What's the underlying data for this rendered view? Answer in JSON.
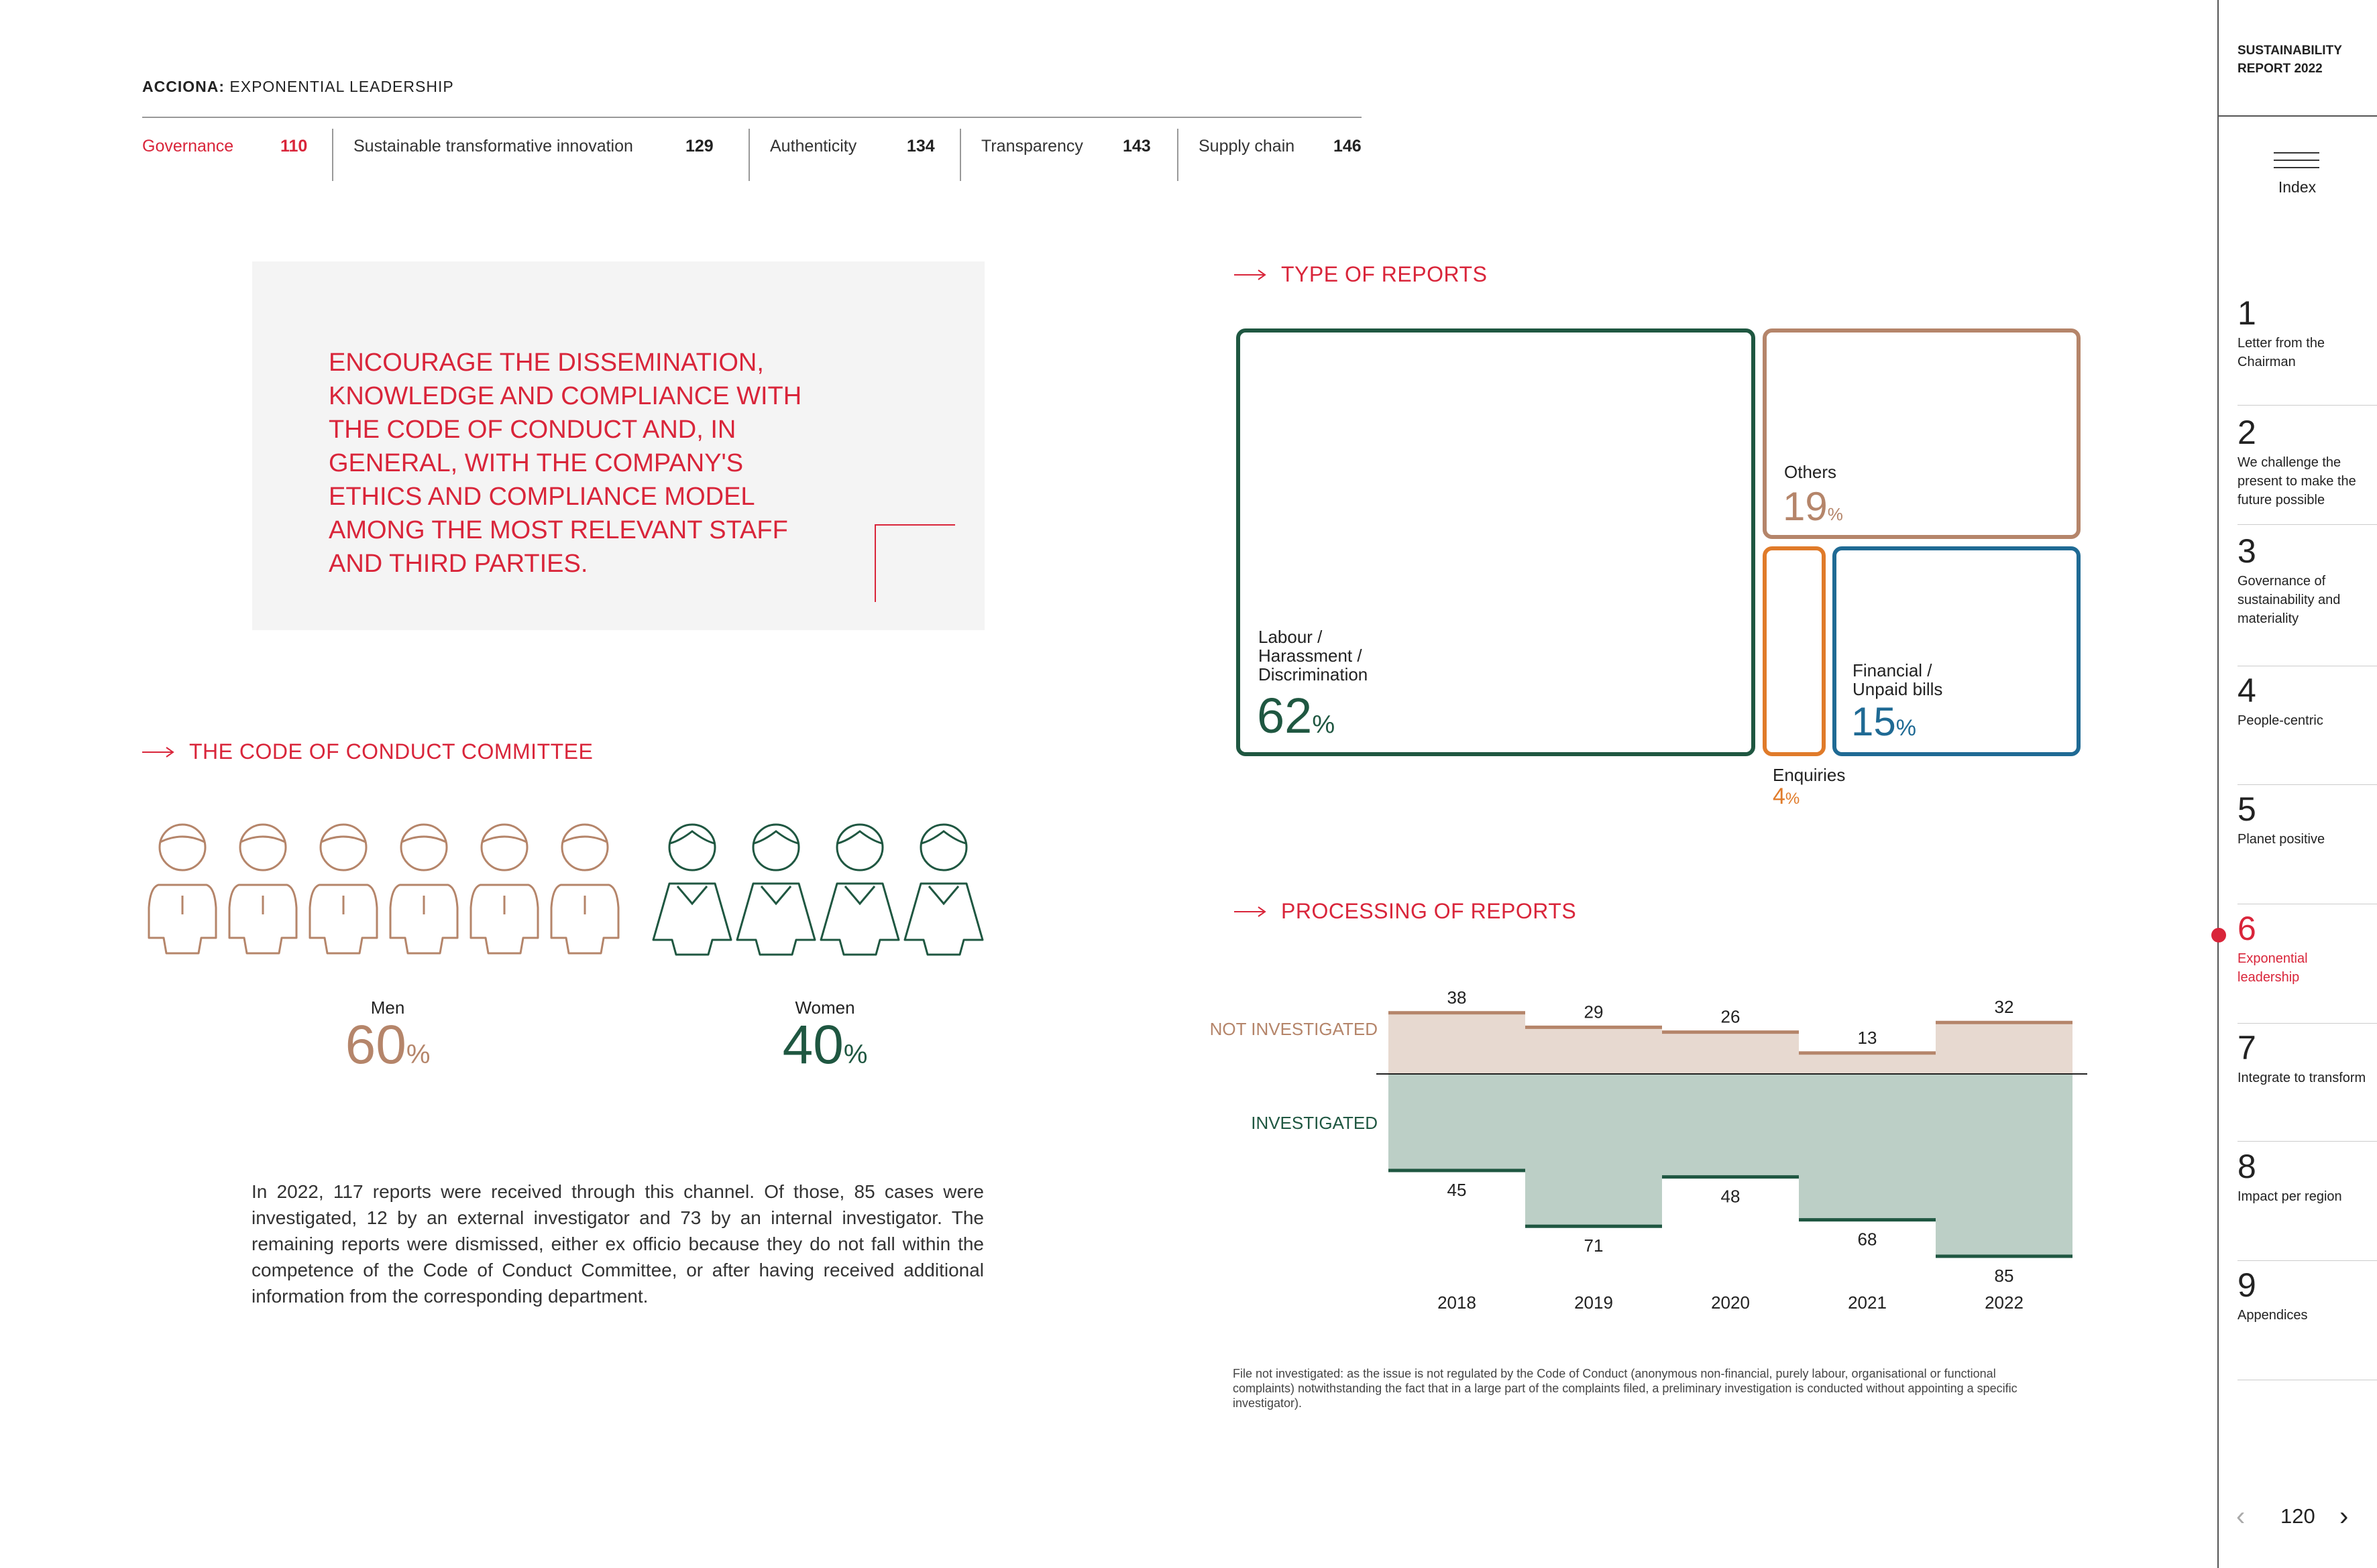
{
  "header": {
    "brand": "ACCIONA:",
    "title": "EXPONENTIAL LEADERSHIP"
  },
  "nav_tabs": [
    {
      "label": "Governance",
      "page": "110",
      "active": true
    },
    {
      "label": "Sustainable transformative innovation",
      "page": "129",
      "active": false
    },
    {
      "label": "Authenticity",
      "page": "134",
      "active": false
    },
    {
      "label": "Transparency",
      "page": "143",
      "active": false
    },
    {
      "label": "Supply chain",
      "page": "146",
      "active": false
    }
  ],
  "quote": "ENCOURAGE THE DISSEMINATION, KNOWLEDGE AND COMPLIANCE WITH THE CODE OF CONDUCT AND, IN GENERAL, WITH THE COMPANY'S ETHICS AND COMPLIANCE MODEL AMONG THE MOST RELEVANT STAFF AND THIRD PARTIES.",
  "committee": {
    "title": "THE CODE OF CONDUCT COMMITTEE",
    "men": {
      "label": "Men",
      "value": "60",
      "unit": "%",
      "count": 6,
      "color": "#b5856a"
    },
    "women": {
      "label": "Women",
      "value": "40",
      "unit": "%",
      "count": 4,
      "color": "#1f5741"
    }
  },
  "body_text": "In 2022, 117 reports were received through this channel. Of those, 85 cases were investigated, 12 by an external investigator and 73 by an internal investigator. The remaining reports were dismissed, either ex officio because they do not fall within the competence of the Code of Conduct Committee, or after having received additional information from the corresponding department.",
  "type_of_reports": {
    "title": "TYPE OF REPORTS",
    "items": [
      {
        "label": "Labour / Harassment / Discrimination",
        "value": "62",
        "unit": "%",
        "color": "#1f5741"
      },
      {
        "label": "Others",
        "value": "19",
        "unit": "%",
        "color": "#b5856a"
      },
      {
        "label": "Enquiries",
        "value": "4",
        "unit": "%",
        "color": "#e07b2a"
      },
      {
        "label": "Financial / Unpaid bills",
        "value": "15",
        "unit": "%",
        "color": "#1f6a94"
      }
    ]
  },
  "chart_data": {
    "type": "area",
    "title": "PROCESSING OF REPORTS",
    "categories": [
      "2018",
      "2019",
      "2020",
      "2021",
      "2022"
    ],
    "series": [
      {
        "name": "NOT INVESTIGATED",
        "values": [
          38,
          29,
          26,
          13,
          32
        ],
        "color": "#b5856a",
        "fill": "#e7d9d0"
      },
      {
        "name": "INVESTIGATED",
        "values": [
          45,
          71,
          48,
          68,
          85
        ],
        "color": "#1f5741",
        "fill": "#bccfc6"
      }
    ]
  },
  "footnote": "File not investigated: as the issue is not regulated by the Code of Conduct (anonymous non-financial, purely labour, organisational or functional complaints) notwithstanding the fact that in a large part of the complaints filed, a preliminary investigation is conducted without appointing a specific investigator).",
  "sidebar": {
    "report_title": "SUSTAINABILITY REPORT 2022",
    "index_label": "Index",
    "items": [
      {
        "num": "1",
        "label": "Letter from the Chairman"
      },
      {
        "num": "2",
        "label": "We challenge the present to make the future possible"
      },
      {
        "num": "3",
        "label": "Governance of sustainability and materiality"
      },
      {
        "num": "4",
        "label": "People-centric"
      },
      {
        "num": "5",
        "label": "Planet positive"
      },
      {
        "num": "6",
        "label": "Exponential leadership",
        "active": true
      },
      {
        "num": "7",
        "label": "Integrate to transform"
      },
      {
        "num": "8",
        "label": "Impact per region"
      },
      {
        "num": "9",
        "label": "Appendices"
      }
    ],
    "page_number": "120"
  }
}
